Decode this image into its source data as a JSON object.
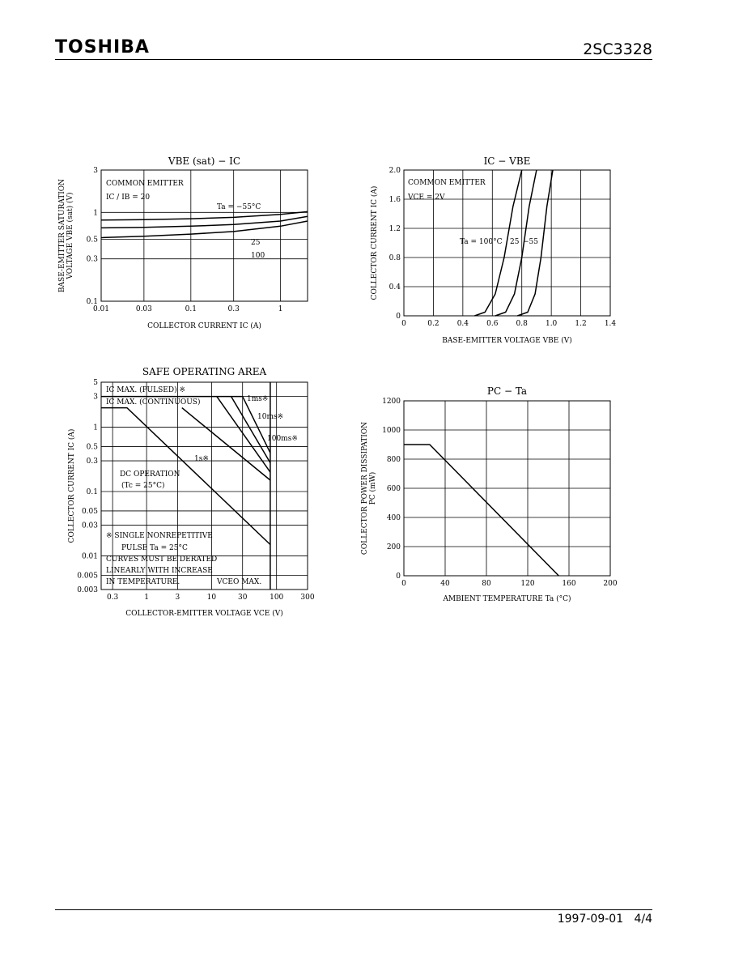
{
  "header": {
    "brand": "TOSHIBA",
    "part_number": "2SC3328"
  },
  "footer": {
    "date": "1997-09-01",
    "page": "4/4"
  },
  "chart_data": [
    {
      "id": "vbe_sat",
      "type": "line",
      "title": "V<sub>BE (sat)</sub> − I<sub>C</sub>",
      "title_text": "VBE (sat) − IC",
      "xlabel": "COLLECTOR CURRENT  IC  (A)",
      "ylabel1": "BASE-EMITTER SATURATION",
      "ylabel2": "VOLTAGE  VBE (sat)  (V)",
      "x_scale": "log",
      "y_scale": "log",
      "xlim": [
        0.01,
        2
      ],
      "ylim": [
        0.1,
        3
      ],
      "x_ticks": [
        0.01,
        0.03,
        0.1,
        0.3,
        1
      ],
      "x_tick_labels": [
        "0.01",
        "0.03",
        "0.1",
        "0.3",
        "1"
      ],
      "y_ticks": [
        0.1,
        0.3,
        0.5,
        1,
        3
      ],
      "y_tick_labels": [
        "0.1",
        "0.3",
        "0.5",
        "1",
        "3"
      ],
      "notes": [
        "COMMON EMITTER",
        "IC / IB = 20"
      ],
      "curve_labels": [
        "Ta = −55°C",
        "25",
        "100"
      ],
      "series": [
        {
          "name": "Ta = −55°C",
          "x": [
            0.01,
            0.03,
            0.1,
            0.3,
            1,
            2
          ],
          "y": [
            0.82,
            0.83,
            0.85,
            0.88,
            0.95,
            1.02
          ]
        },
        {
          "name": "25",
          "x": [
            0.01,
            0.03,
            0.1,
            0.3,
            1,
            2
          ],
          "y": [
            0.67,
            0.68,
            0.7,
            0.73,
            0.8,
            0.9
          ]
        },
        {
          "name": "100",
          "x": [
            0.01,
            0.03,
            0.1,
            0.3,
            1,
            2
          ],
          "y": [
            0.52,
            0.54,
            0.57,
            0.61,
            0.7,
            0.8
          ]
        }
      ],
      "grid": true
    },
    {
      "id": "ic_vbe",
      "type": "line",
      "title": "I<sub>C</sub> − V<sub>BE</sub>",
      "title_text": "IC − VBE",
      "xlabel": "BASE-EMITTER VOLTAGE  VBE  (V)",
      "ylabel1": "COLLECTOR CURRENT  IC  (A)",
      "x_scale": "linear",
      "y_scale": "linear",
      "xlim": [
        0,
        1.4
      ],
      "ylim": [
        0,
        2.0
      ],
      "x_ticks": [
        0,
        0.2,
        0.4,
        0.6,
        0.8,
        1.0,
        1.2,
        1.4
      ],
      "x_tick_labels": [
        "0",
        "0.2",
        "0.4",
        "0.6",
        "0.8",
        "1.0",
        "1.2",
        "1.4"
      ],
      "y_ticks": [
        0,
        0.4,
        0.8,
        1.2,
        1.6,
        2.0
      ],
      "y_tick_labels": [
        "0",
        "0.4",
        "0.8",
        "1.2",
        "1.6",
        "2.0"
      ],
      "notes": [
        "COMMON EMITTER",
        "VCE = 2V"
      ],
      "curve_labels": [
        "Ta = 100°C",
        "25",
        "−55"
      ],
      "series": [
        {
          "name": "Ta = 100°C",
          "x": [
            0.48,
            0.55,
            0.62,
            0.68,
            0.74,
            0.8
          ],
          "y": [
            0,
            0.05,
            0.3,
            0.8,
            1.5,
            2.0
          ]
        },
        {
          "name": "25",
          "x": [
            0.62,
            0.69,
            0.75,
            0.8,
            0.85,
            0.9
          ],
          "y": [
            0,
            0.05,
            0.3,
            0.8,
            1.5,
            2.0
          ]
        },
        {
          "name": "−55",
          "x": [
            0.77,
            0.84,
            0.89,
            0.93,
            0.97,
            1.01
          ],
          "y": [
            0,
            0.05,
            0.3,
            0.8,
            1.5,
            2.0
          ]
        }
      ],
      "grid": true
    },
    {
      "id": "soa",
      "type": "line",
      "title": "SAFE OPERATING AREA",
      "title_text": "SAFE OPERATING AREA",
      "xlabel": "COLLECTOR-EMITTER VOLTAGE  VCE  (V)",
      "ylabel1": "COLLECTOR CURRENT  IC  (A)",
      "x_scale": "log",
      "y_scale": "log",
      "xlim": [
        0.2,
        300
      ],
      "ylim": [
        0.003,
        5
      ],
      "x_ticks": [
        0.3,
        1,
        3,
        10,
        30,
        100,
        300
      ],
      "x_tick_labels": [
        "0.3",
        "1",
        "3",
        "10",
        "30",
        "100",
        "300"
      ],
      "y_ticks": [
        0.003,
        0.005,
        0.01,
        0.03,
        0.05,
        0.1,
        0.3,
        0.5,
        1,
        3,
        5
      ],
      "y_tick_labels": [
        "0.003",
        "0.005",
        "0.01",
        "0.03",
        "0.05",
        "0.1",
        "0.3",
        "0.5",
        "1",
        "3",
        "5"
      ],
      "notes": [
        "IC MAX. (PULSED) ※",
        "IC MAX. (CONTINUOUS)",
        "DC OPERATION",
        "(Tc = 25°C)",
        "※  SINGLE NONREPETITIVE",
        "PULSE Ta = 25°C",
        "CURVES MUST BE DERATED",
        "LINEARLY WITH INCREASE",
        "IN TEMPERATURE.",
        "VCEO MAX."
      ],
      "curve_labels": [
        "1ms※",
        "10ms※",
        "100ms※",
        "1s※"
      ],
      "series": [
        {
          "name": "1ms※",
          "x": [
            0.2,
            30,
            80
          ],
          "y": [
            3,
            3,
            0.4
          ]
        },
        {
          "name": "10ms※",
          "x": [
            20,
            80
          ],
          "y": [
            3,
            0.28
          ]
        },
        {
          "name": "100ms※",
          "x": [
            12,
            80
          ],
          "y": [
            3,
            0.2
          ]
        },
        {
          "name": "1s※",
          "x": [
            3.5,
            80
          ],
          "y": [
            2,
            0.15
          ]
        },
        {
          "name": "DC OPERATION",
          "x": [
            0.2,
            0.5,
            80
          ],
          "y": [
            2,
            2,
            0.015
          ]
        }
      ],
      "vceo_max": 80,
      "grid": true
    },
    {
      "id": "pc_ta",
      "type": "line",
      "title": "P<sub>C</sub> − Ta",
      "title_text": "PC − Ta",
      "xlabel": "AMBIENT TEMPERATURE  Ta  (°C)",
      "ylabel1": "COLLECTOR POWER DISSIPATION",
      "ylabel2": "PC  (mW)",
      "x_scale": "linear",
      "y_scale": "linear",
      "xlim": [
        0,
        200
      ],
      "ylim": [
        0,
        1200
      ],
      "x_ticks": [
        0,
        40,
        80,
        120,
        160,
        200
      ],
      "x_tick_labels": [
        "0",
        "40",
        "80",
        "120",
        "160",
        "200"
      ],
      "y_ticks": [
        0,
        200,
        400,
        600,
        800,
        1000,
        1200
      ],
      "y_tick_labels": [
        "0",
        "200",
        "400",
        "600",
        "800",
        "1000",
        "1200"
      ],
      "series": [
        {
          "name": "",
          "x": [
            0,
            25,
            150
          ],
          "y": [
            900,
            900,
            0
          ]
        }
      ],
      "grid": true
    }
  ]
}
